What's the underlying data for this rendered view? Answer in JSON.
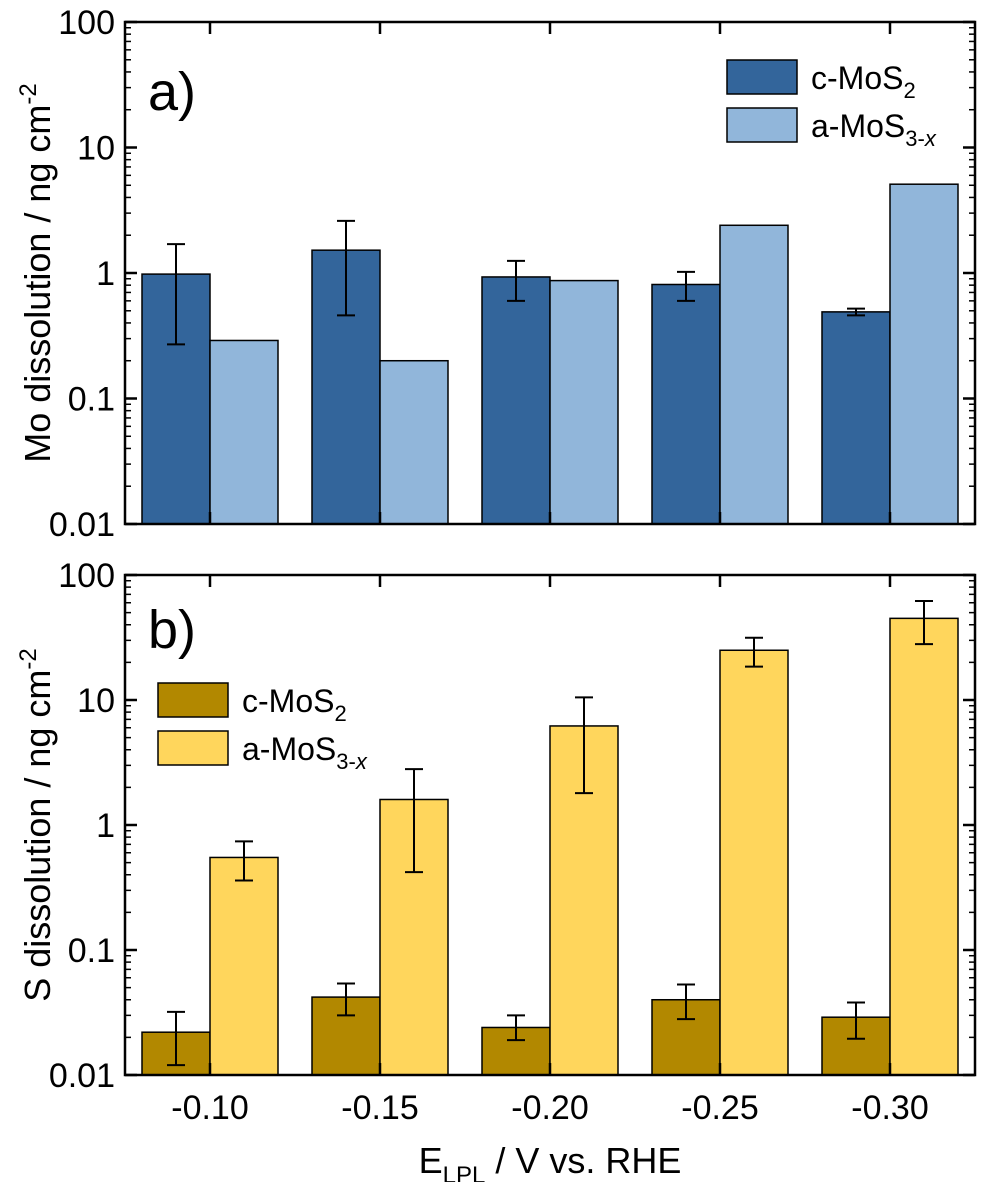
{
  "colors": {
    "a_c_MoS2": "#33659b",
    "a_a_MoS3x": "#91b6da",
    "b_c_MoS2": "#b28800",
    "b_a_MoS3x": "#ffd65c",
    "axis": "#000000",
    "error_bar": "#000000"
  },
  "chart_data": [
    {
      "type": "bar",
      "panel_label": "a)",
      "ylabel": "Mo dissolution / ng cm",
      "ylabel_superscript": "-2",
      "yscale": "log",
      "ylim": [
        0.01,
        100
      ],
      "yticks": [
        "0.01",
        "0.1",
        "1",
        "10",
        "100"
      ],
      "categories": [
        "-0.10",
        "-0.15",
        "-0.20",
        "-0.25",
        "-0.30"
      ],
      "legend_position": "top-right",
      "series": [
        {
          "name": "c-MoS",
          "name_subscript": "2",
          "values": [
            0.98,
            1.52,
            0.93,
            0.81,
            0.49
          ],
          "err_low": [
            0.27,
            0.46,
            0.6,
            0.6,
            0.46
          ],
          "err_high": [
            1.7,
            2.6,
            1.25,
            1.02,
            0.52
          ]
        },
        {
          "name": "a-MoS",
          "name_subscript": "3-x",
          "values": [
            0.29,
            0.2,
            0.87,
            2.4,
            5.1
          ],
          "err_low": null,
          "err_high": null
        }
      ]
    },
    {
      "type": "bar",
      "panel_label": "b)",
      "ylabel": "S dissolution / ng cm",
      "ylabel_superscript": "-2",
      "yscale": "log",
      "ylim": [
        0.01,
        100
      ],
      "yticks": [
        "0.01",
        "0.1",
        "1",
        "10",
        "100"
      ],
      "categories": [
        "-0.10",
        "-0.15",
        "-0.20",
        "-0.25",
        "-0.30"
      ],
      "xlabel": "E",
      "xlabel_subscript": "LPL",
      "xlabel_rest": " / V vs. RHE",
      "legend_position": "top-left",
      "series": [
        {
          "name": "c-MoS",
          "name_subscript": "2",
          "values": [
            0.022,
            0.042,
            0.024,
            0.04,
            0.029
          ],
          "err_low": [
            0.012,
            0.03,
            0.019,
            0.028,
            0.0195
          ],
          "err_high": [
            0.032,
            0.054,
            0.03,
            0.053,
            0.038
          ]
        },
        {
          "name": "a-MoS",
          "name_subscript": "3-x",
          "values": [
            0.55,
            1.6,
            6.2,
            25,
            45
          ],
          "err_low": [
            0.36,
            0.42,
            1.8,
            18.5,
            28
          ],
          "err_high": [
            0.74,
            2.8,
            10.5,
            31.5,
            62
          ]
        }
      ]
    }
  ]
}
